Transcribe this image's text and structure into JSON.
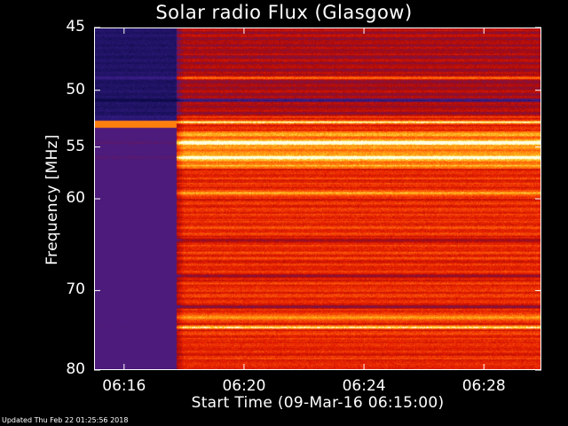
{
  "chart_data": {
    "type": "heatmap",
    "title": "Solar radio Flux (Glasgow)",
    "xlabel": "Start Time (09-Mar-16 06:15:00)",
    "ylabel": "Frequency [MHz]",
    "xlim": [
      "06:15:00",
      "06:29:55"
    ],
    "ylim": [
      45,
      80
    ],
    "y_scale": "log",
    "y_reversed": true,
    "x_ticks": [
      "06:16",
      "06:20",
      "06:24",
      "06:28"
    ],
    "y_ticks": [
      45,
      50,
      55,
      60,
      70,
      80
    ],
    "colormap": "red-temperature (dark blue low -> red -> orange -> yellow -> white high)",
    "features": [
      {
        "description": "low-intensity (dark blue/purple) region before onset",
        "time_start": "06:15:00",
        "time_end": "06:17:45",
        "freq_start": 45,
        "freq_end": 80
      },
      {
        "description": "intensity increase onset",
        "time": "06:17:45"
      },
      {
        "description": "bright bands",
        "frequencies_mhz": [
          48.9,
          52.7,
          54.6,
          55.9,
          59.4,
          73.2,
          74.4
        ]
      },
      {
        "description": "dark interference bands",
        "frequencies_mhz": [
          50.8,
          64.3,
          68.3,
          71.9
        ]
      }
    ]
  },
  "footer": "Updated Thu Feb 22 01:25:56 2018",
  "colors": {
    "background": "#000000",
    "text": "#ffffff"
  }
}
